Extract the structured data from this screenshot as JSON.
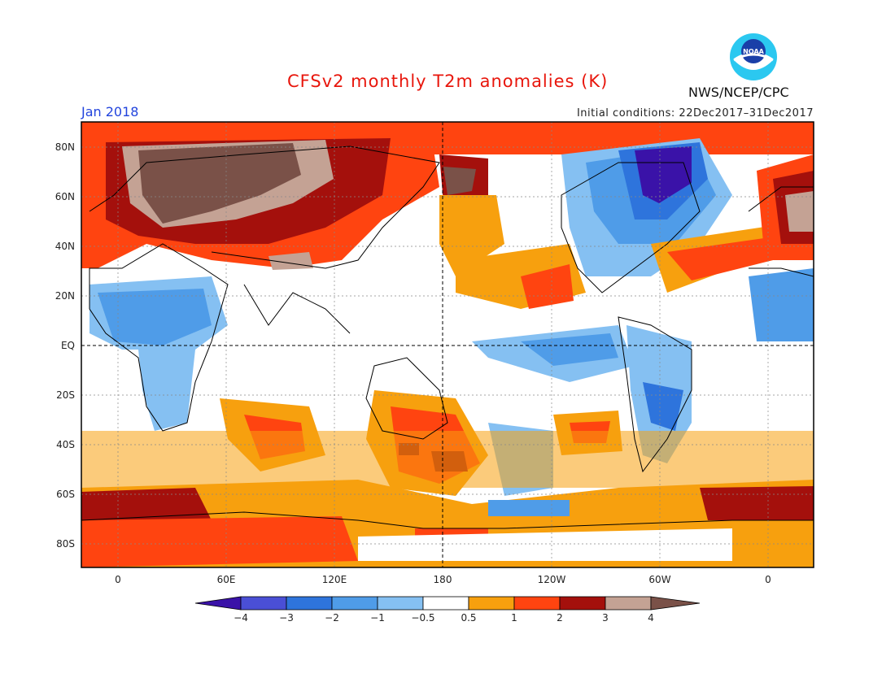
{
  "header": {
    "title": "CFSv2 monthly T2m anomalies (K)",
    "month": "Jan 2018",
    "initial_conditions": "Initial conditions: 22Dec2017–31Dec2017",
    "agency": "NWS/NCEP/CPC",
    "logo_text": "NOAA"
  },
  "map": {
    "lat_labels": [
      "80N",
      "60N",
      "40N",
      "20N",
      "EQ",
      "20S",
      "40S",
      "60S",
      "80S"
    ],
    "lon_labels": [
      "0",
      "60E",
      "120E",
      "180",
      "120W",
      "60W",
      "0"
    ]
  },
  "colorbar": {
    "labels": [
      "−4",
      "−3",
      "−2",
      "−1",
      "−0.5",
      "0.5",
      "1",
      "2",
      "3",
      "4"
    ],
    "colors": [
      "#3a12a8",
      "#4a4fd6",
      "#2e74dc",
      "#4f9ce8",
      "#85c0f2",
      "#ffffff",
      "#f7a00e",
      "#ff4410",
      "#a4100c",
      "#c4a294",
      "#7a5148"
    ]
  },
  "colors": {
    "very_warm": "#7a5148",
    "warm3": "#c4a294",
    "warm2": "#a4100c",
    "warm1": "#ff4410",
    "warm05": "#f7a00e",
    "cool05": "#85c0f2",
    "cool1": "#4f9ce8",
    "cool2": "#2e74dc",
    "cool3": "#4a4fd6",
    "cool4": "#3a12a8"
  }
}
